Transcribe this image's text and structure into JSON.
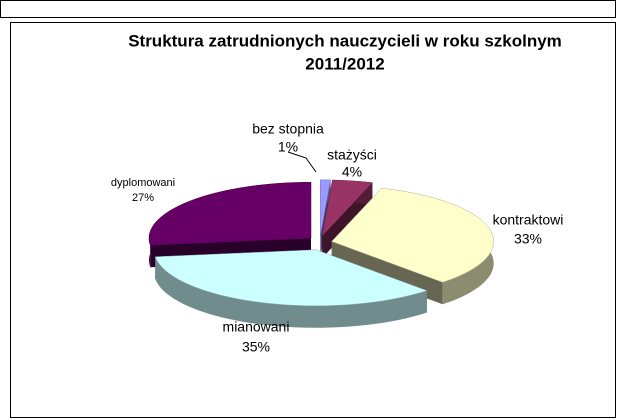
{
  "chart_data": {
    "type": "pie",
    "title": [
      "Struktura zatrudnionych nauczycieli w roku szkolnym",
      "2011/2012"
    ],
    "categories": [
      "bez stopnia",
      "stażyści",
      "kontraktowi",
      "mianowani",
      "dyplomowani"
    ],
    "values": [
      1,
      4,
      33,
      35,
      27
    ],
    "value_labels": [
      "1%",
      "4%",
      "33%",
      "35%",
      "27%"
    ],
    "colors": [
      "#9999ff",
      "#993366",
      "#ffffcc",
      "#ccffff",
      "#660066"
    ]
  }
}
